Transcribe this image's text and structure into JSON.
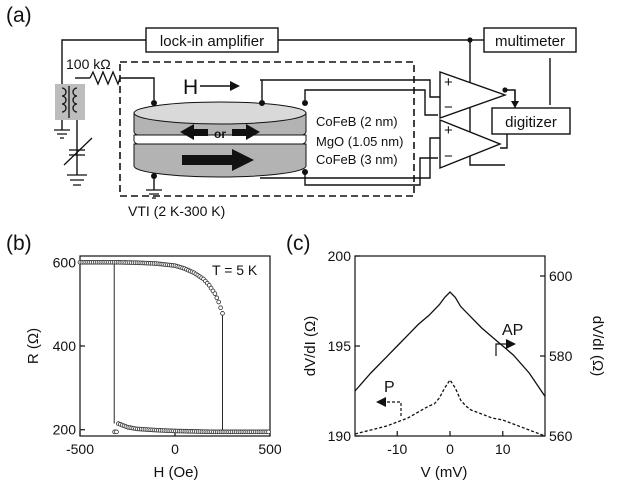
{
  "panels": {
    "a": "(a)",
    "b": "(b)",
    "c": "(c)"
  },
  "schematic": {
    "lockin": "lock-in amplifier",
    "multimeter": "multimeter",
    "digitizer": "digitizer",
    "resistor": "100 kΩ",
    "field": "H",
    "or_label": "or",
    "layer_top": "CoFeB (2 nm)",
    "layer_mid": "MgO (1.05 nm)",
    "layer_bot": "CoFeB (3 nm)",
    "vti": "VTI (2 K-300 K)",
    "amp_plus": "+",
    "amp_minus": "−"
  },
  "chart_data": [
    {
      "type": "scatter",
      "annotation": "T = 5 K",
      "xlabel": "H (Oe)",
      "ylabel": "R (Ω)",
      "xlim": [
        -500,
        500
      ],
      "ylim": [
        185,
        615
      ],
      "xticks": [
        "-500",
        "0",
        "500"
      ],
      "yticks": [
        "200",
        "400",
        "600"
      ],
      "series": [
        {
          "description": "high-R branch (AP)",
          "x": [
            -500,
            -400,
            -300,
            -200,
            -100,
            0,
            50,
            100,
            150,
            180,
            210,
            230,
            250,
            260
          ],
          "y": [
            600,
            600,
            600,
            599,
            597,
            592,
            585,
            575,
            560,
            545,
            525,
            505,
            478,
            475
          ]
        },
        {
          "description": "low-R branch (P)",
          "x": [
            -300,
            -250,
            -200,
            -100,
            0,
            100,
            200,
            300,
            400,
            500
          ],
          "y": [
            215,
            206,
            202,
            199,
            197,
            196,
            195,
            195,
            195,
            195
          ]
        },
        {
          "description": "switching lines",
          "x": [
            -320,
            -320,
            250,
            250
          ],
          "y": [
            600,
            215,
            478,
            195
          ]
        }
      ]
    },
    {
      "type": "line",
      "xlabel": "V (mV)",
      "ylabel_left": "dV/dI (Ω)",
      "ylabel_right": "dV/dI (Ω)",
      "xlim": [
        -18,
        18
      ],
      "ylim_left": [
        190,
        200
      ],
      "ylim_right": [
        560,
        605
      ],
      "xticks": [
        "-10",
        "0",
        "10"
      ],
      "yticks_left": [
        "190",
        "195",
        "200"
      ],
      "yticks_right": [
        "560",
        "580",
        "600"
      ],
      "series": [
        {
          "name": "AP",
          "axis": "left",
          "style": "solid",
          "x": [
            -18,
            -15,
            -12,
            -10,
            -8,
            -6,
            -4,
            -2,
            -1,
            0,
            1,
            2,
            4,
            6,
            8,
            10,
            12,
            15,
            18
          ],
          "y": [
            192.5,
            193.5,
            194.4,
            195.0,
            195.6,
            196.2,
            196.7,
            197.3,
            197.7,
            198.0,
            197.7,
            197.2,
            196.6,
            196.0,
            195.5,
            195.0,
            194.5,
            193.5,
            192.2
          ]
        },
        {
          "name": "P",
          "axis": "right",
          "style": "dashed",
          "x": [
            -18,
            -15,
            -12,
            -10,
            -8,
            -6,
            -4,
            -3,
            -2,
            -1,
            0,
            1,
            2,
            3,
            4,
            6,
            8,
            10,
            12,
            15,
            18
          ],
          "y": [
            560.5,
            561.5,
            562.5,
            563.5,
            564.5,
            566,
            567.5,
            568,
            569.5,
            572,
            574,
            572,
            569,
            567.5,
            566.5,
            565.5,
            564.5,
            564,
            563,
            561.5,
            560
          ]
        }
      ]
    }
  ]
}
